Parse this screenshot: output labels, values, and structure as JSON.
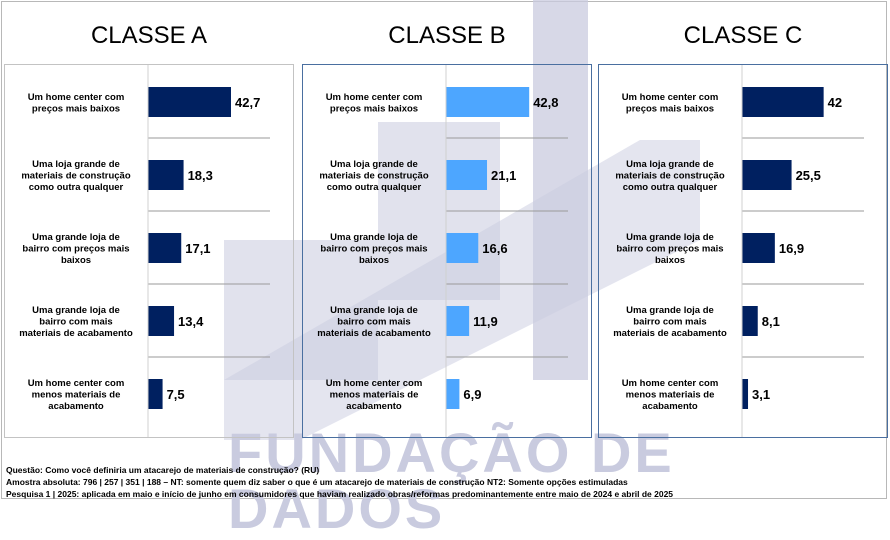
{
  "watermark_text": "FUNDAÇÃO DE DADOS",
  "colors": {
    "dark_bar": "#002060",
    "light_bar": "#4da6ff",
    "watermark": "#c9cbdf"
  },
  "chart_data": [
    {
      "type": "bar",
      "title": "CLASSE A",
      "categories": [
        "Um home center com preços mais baixos",
        "Uma loja grande de materiais de construção como outra qualquer",
        "Uma grande loja de bairro com preços mais baixos",
        "Uma grande loja de bairro com mais materiais de acabamento",
        "Um home center com menos materiais de acabamento"
      ],
      "values": [
        42.7,
        18.3,
        17.1,
        13.4,
        7.5
      ],
      "value_labels": [
        "42,7",
        "18,3",
        "17,1",
        "13,4",
        "7,5"
      ],
      "color": "#002060",
      "orientation": "horizontal"
    },
    {
      "type": "bar",
      "title": "CLASSE B",
      "categories": [
        "Um home center com preços mais baixos",
        "Uma loja grande de materiais de construção como outra qualquer",
        "Uma grande loja de bairro com preços mais baixos",
        "Uma grande loja de bairro com mais materiais de acabamento",
        "Um home center com menos materiais de acabamento"
      ],
      "values": [
        42.8,
        21.1,
        16.6,
        11.9,
        6.9
      ],
      "value_labels": [
        "42,8",
        "21,1",
        "16,6",
        "11,9",
        "6,9"
      ],
      "color": "#4da6ff",
      "orientation": "horizontal"
    },
    {
      "type": "bar",
      "title": "CLASSE C",
      "categories": [
        "Um home center com preços mais baixos",
        "Uma loja grande de materiais de construção como outra qualquer",
        "Uma grande loja de bairro com preços mais baixos",
        "Uma grande loja de bairro com mais materiais de acabamento",
        "Um home center com menos materiais de acabamento"
      ],
      "values": [
        42,
        25.5,
        16.9,
        8.1,
        3.1
      ],
      "value_labels": [
        "42",
        "25,5",
        "16,9",
        "8,1",
        "3,1"
      ],
      "color": "#002060",
      "orientation": "horizontal"
    }
  ],
  "category_lines": [
    [
      "Um home center com",
      "preços mais baixos"
    ],
    [
      "Uma loja grande de",
      "materiais de construção",
      "como outra qualquer"
    ],
    [
      "Uma grande loja de",
      "bairro com preços mais",
      "baixos"
    ],
    [
      "Uma grande loja de",
      "bairro com mais",
      "materiais de acabamento"
    ],
    [
      "Um home center com",
      "menos materiais de",
      "acabamento"
    ]
  ],
  "footer": {
    "question": "Questão: Como você definiria um atacarejo de materiais de construção? (RU)",
    "sample": "Amostra absoluta: 796 | 257 | 351 | 188 – NT: somente quem diz saber o que é um atacarejo de materiais de construção NT2: Somente opções estimuladas",
    "survey": "Pesquisa 1 | 2025: aplicada em maio e início de junho em consumidores que haviam realizado obras/reformas predominantemente entre maio de 2024 e abril de 2025"
  }
}
